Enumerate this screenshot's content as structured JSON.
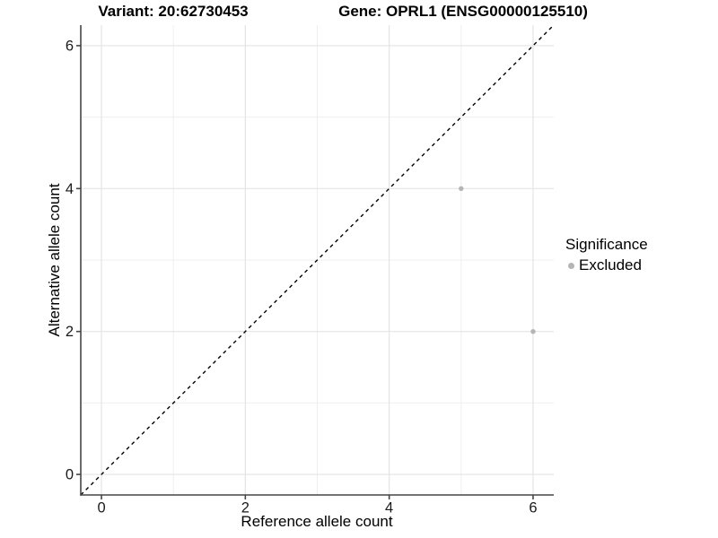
{
  "chart_data": {
    "type": "scatter",
    "title_left": "Variant: 20:62730453",
    "title_right": "Gene: OPRL1 (ENSG00000125510)",
    "xlabel": "Reference allele count",
    "ylabel": "Alternative allele count",
    "xlim": [
      -0.2875,
      6.2875
    ],
    "ylim": [
      -0.2875,
      6.2875
    ],
    "x_ticks": [
      0,
      2,
      4,
      6
    ],
    "y_ticks": [
      0,
      2,
      4,
      6
    ],
    "x_minor_ticks": [
      1,
      3,
      5
    ],
    "y_minor_ticks": [
      1,
      3,
      5
    ],
    "grid": "major+minor",
    "identity_line": {
      "style": "dashed",
      "from": [
        -0.2875,
        -0.2875
      ],
      "to": [
        6.2875,
        6.2875
      ]
    },
    "series": [
      {
        "name": "Excluded",
        "points": [
          {
            "x": 5,
            "y": 4
          },
          {
            "x": 6,
            "y": 2
          }
        ]
      }
    ],
    "legend": {
      "title": "Significance",
      "position": "right",
      "items": [
        {
          "label": "Excluded",
          "color": "#b5b5b5"
        }
      ]
    },
    "colors": {
      "point": "#b5b5b5",
      "identity_line": "#000000",
      "axis_line": "#464646",
      "grid_major": "#e4e4e4",
      "grid_minor": "#efefef",
      "tick_text": "#1a1a1a"
    }
  }
}
